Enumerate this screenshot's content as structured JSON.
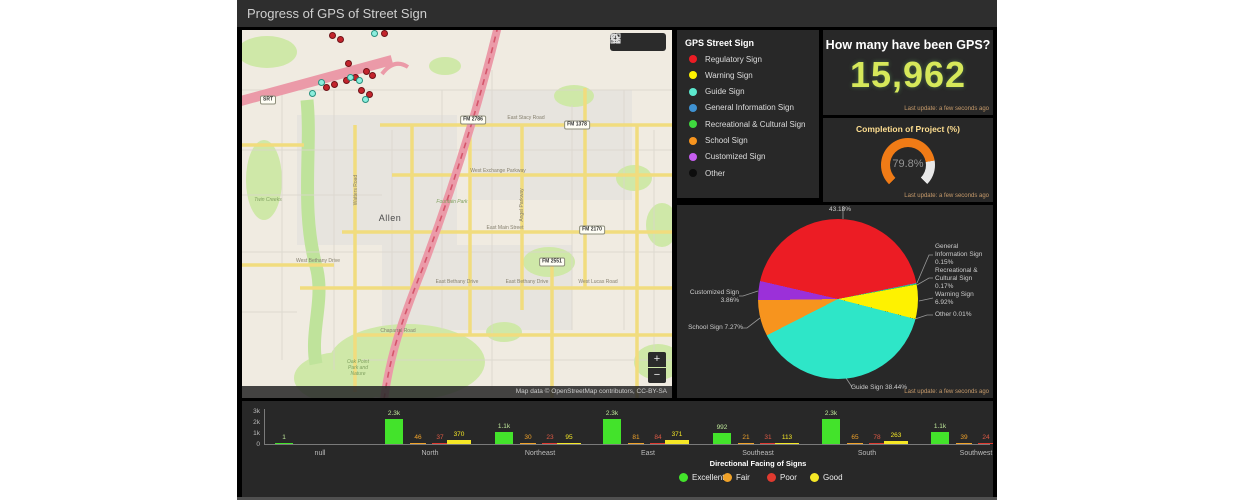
{
  "header": {
    "title": "Progress of GPS of Street Sign"
  },
  "map": {
    "attribution": "Map data © OpenStreetMap contributors, CC-BY-SA",
    "zoom_in": "+",
    "zoom_out": "−",
    "city_label": "Allen",
    "road_labels": [
      "East Stacy Road",
      "West Exchange Parkway",
      "East Main Street",
      "East Bethany Drive",
      "East Bethany Drive",
      "West Lucas Road",
      "West Bethany Drive",
      "Chaparral Road",
      "Watters Road",
      "Angel Parkway"
    ],
    "park_labels": [
      "Twin Creeks",
      "Fountain Park",
      "Oak Point\nPark and\nNature"
    ],
    "shields": [
      "SRT",
      "FM 2786",
      "FM 1378",
      "FM 2170",
      "FM 2551"
    ]
  },
  "legend": {
    "title": "GPS Street Sign",
    "items": [
      {
        "label": "Regulatory Sign",
        "color": "#ec1c24"
      },
      {
        "label": "Warning Sign",
        "color": "#fff200"
      },
      {
        "label": "Guide Sign",
        "color": "#5ce8cd"
      },
      {
        "label": "General Information Sign",
        "color": "#3f92d2"
      },
      {
        "label": "Recreational & Cultural Sign",
        "color": "#3fd93f"
      },
      {
        "label": "School Sign",
        "color": "#f7941e"
      },
      {
        "label": "Customized Sign",
        "color": "#c65ef0"
      },
      {
        "label": "Other",
        "color": "#0d0d0d"
      }
    ]
  },
  "indicator": {
    "title": "How many have been GPS?",
    "value": "15,962",
    "last_update": "Last update: a few seconds ago"
  },
  "gauge": {
    "title": "Completion of Project (%)",
    "value": "79.8%",
    "percent": 79.8,
    "arc_color": "#f07b16",
    "track_color": "#e8e8e8",
    "last_update": "Last update: a few seconds ago"
  },
  "pie_panel": {
    "last_update": "Last update: a few seconds ago"
  },
  "chart_data": [
    {
      "type": "pie",
      "title": "GPS Street Sign",
      "slices": [
        {
          "label": "Regulatory Sign",
          "pct": 43.18,
          "color": "#ec1c24",
          "display": "Regulatory Sign\n43.18%"
        },
        {
          "label": "General Information Sign",
          "pct": 0.15,
          "color": "#3f92d2",
          "display": "General\nInformation Sign\n0.15%"
        },
        {
          "label": "Recreational & Cultural Sign",
          "pct": 0.17,
          "color": "#3fd93f",
          "display": "Recreational &\nCultural Sign\n0.17%"
        },
        {
          "label": "Warning Sign",
          "pct": 6.92,
          "color": "#fef200",
          "display": "Warning Sign\n6.92%"
        },
        {
          "label": "Other",
          "pct": 0.01,
          "color": "#0d0d0d",
          "display": "Other 0.01%"
        },
        {
          "label": "Guide Sign",
          "pct": 38.44,
          "color": "#2ee6c8",
          "display": "Guide Sign 38.44%"
        },
        {
          "label": "School Sign",
          "pct": 7.27,
          "color": "#f7941e",
          "display": "School Sign 7.27%"
        },
        {
          "label": "Customized Sign",
          "pct": 3.86,
          "color": "#9b30d9",
          "display": "Customized Sign\n3.86%"
        }
      ],
      "start_angle_deg": 283
    },
    {
      "type": "bar",
      "categories": [
        "null",
        "North",
        "Northeast",
        "East",
        "Southeast",
        "South",
        "Southwest"
      ],
      "series": [
        {
          "name": "Excellent",
          "color": "#43e32b",
          "label_color": "#bfe89a",
          "values": [
            1,
            2300,
            1100,
            2300,
            992,
            2300,
            1100
          ],
          "labels": [
            "1",
            "2.3k",
            "1.1k",
            "2.3k",
            "992",
            "2.3k",
            "1.1k"
          ]
        },
        {
          "name": "Fair",
          "color": "#f0a229",
          "label_color": "#f0a229",
          "values": [
            null,
            46,
            30,
            81,
            21,
            65,
            39
          ],
          "labels": [
            "",
            "46",
            "30",
            "81",
            "21",
            "65",
            "39"
          ]
        },
        {
          "name": "Poor",
          "color": "#e03a2f",
          "label_color": "#e05a45",
          "values": [
            null,
            37,
            23,
            84,
            31,
            78,
            24
          ],
          "labels": [
            "",
            "37",
            "23",
            "84",
            "31",
            "78",
            "24"
          ]
        },
        {
          "name": "Good",
          "color": "#f5e726",
          "label_color": "#f5e726",
          "values": [
            null,
            370,
            95,
            371,
            113,
            263,
            null
          ],
          "labels": [
            "",
            "370",
            "95",
            "371",
            "113",
            "263",
            ""
          ]
        }
      ],
      "xlabel": "Directional Facing of Signs",
      "ylim": [
        0,
        3000
      ],
      "yticks": [
        "3k",
        "2k",
        "1k",
        "0"
      ],
      "legend": [
        "Excellent",
        "Fair",
        "Poor",
        "Good"
      ]
    }
  ]
}
